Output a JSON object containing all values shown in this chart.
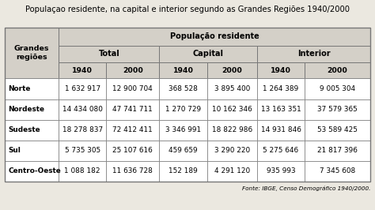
{
  "title": "Populaçao residente, na capital e interior segundo as Grandes Regiões 1940/2000",
  "rows": [
    [
      "Norte",
      "1 632 917",
      "12 900 704",
      "368 528",
      "3 895 400",
      "1 264 389",
      "9 005 304"
    ],
    [
      "Nordeste",
      "14 434 080",
      "47 741 711",
      "1 270 729",
      "10 162 346",
      "13 163 351",
      "37 579 365"
    ],
    [
      "Sudeste",
      "18 278 837",
      "72 412 411",
      "3 346 991",
      "18 822 986",
      "14 931 846",
      "53 589 425"
    ],
    [
      "Sul",
      "5 735 305",
      "25 107 616",
      "459 659",
      "3 290 220",
      "5 275 646",
      "21 817 396"
    ],
    [
      "Centro-Oeste",
      "1 088 182",
      "11 636 728",
      "152 189",
      "4 291 120",
      "935 993",
      "7 345 608"
    ]
  ],
  "footer": "Fonte: IBGE, Censo Demográfico 1940/2000.",
  "bg_color": "#ebe8e0",
  "header_bg": "#d4d0c8",
  "border_color": "#777777",
  "title_fontsize": 7.2,
  "cell_fontsize": 6.4,
  "header_fontsize": 7.0,
  "footer_fontsize": 5.2,
  "col_label_fontsize": 6.8
}
